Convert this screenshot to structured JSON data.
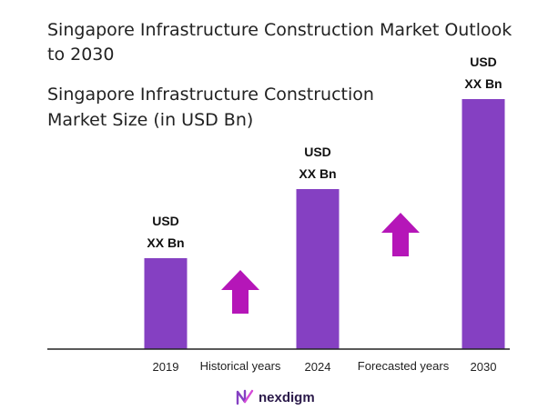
{
  "chart_data": {
    "type": "bar",
    "title": "Singapore Infrastructure Construction Market Outlook to 2030",
    "subtitle": "Singapore Infrastructure Construction Market Size (in USD Bn)",
    "categories": [
      "2019",
      "2024",
      "2030"
    ],
    "values": [
      1.0,
      1.76,
      2.75
    ],
    "bar_labels": [
      [
        "USD",
        "XX Bn"
      ],
      [
        "USD",
        "XX Bn"
      ],
      [
        "USD",
        "XX Bn"
      ]
    ],
    "period_labels": [
      "Historical years",
      "Forecasted years"
    ],
    "bar_color": "#8540c2",
    "arrow_color": "#b516b8",
    "xlabel": "",
    "ylabel": ""
  },
  "brand": {
    "name": "nexdigm"
  }
}
